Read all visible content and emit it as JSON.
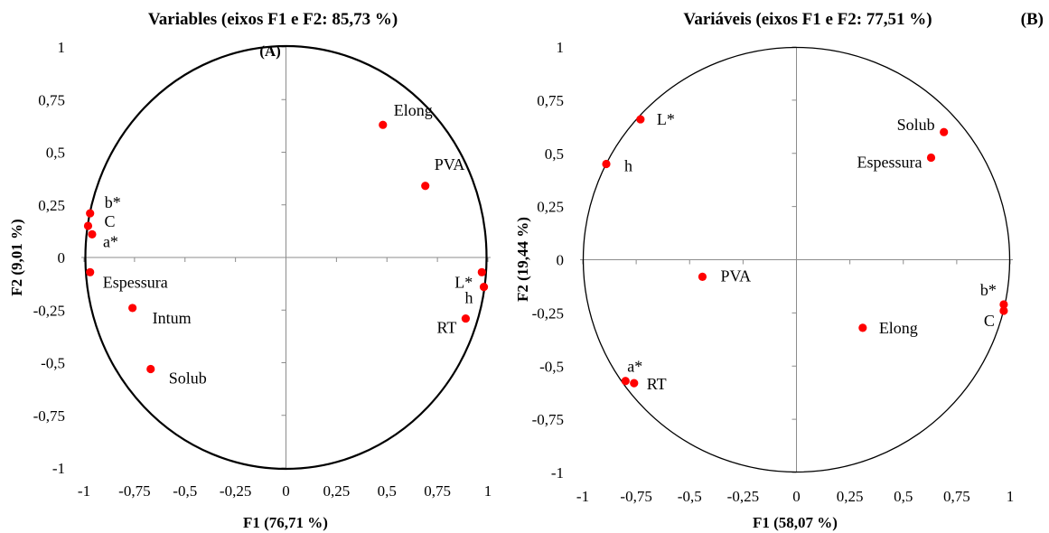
{
  "chart_data": [
    {
      "type": "scatter",
      "title": "Variables (eixos F1 e F2: 85,73 %)",
      "panel_label": "(A)",
      "xlabel": "F1 (76,71 %)",
      "ylabel": "F2 (9,01 %)",
      "xlim": [
        -1,
        1
      ],
      "ylim": [
        -1,
        1
      ],
      "x_ticks": [
        "-1",
        "-0,75",
        "-0,5",
        "-0,25",
        "0",
        "0,25",
        "0,5",
        "0,75",
        "1"
      ],
      "y_ticks": [
        "1",
        "0,75",
        "0,5",
        "0,25",
        "0",
        "-0,25",
        "-0,5",
        "-0,75",
        "-1"
      ],
      "correlation_circle": true,
      "marker_color": "#ff0000",
      "points": [
        {
          "label": "Elong",
          "x": 0.48,
          "y": 0.63
        },
        {
          "label": "PVA",
          "x": 0.69,
          "y": 0.34
        },
        {
          "label": "b*",
          "x": -0.97,
          "y": 0.21
        },
        {
          "label": "C",
          "x": -0.98,
          "y": 0.15
        },
        {
          "label": "a*",
          "x": -0.96,
          "y": 0.11
        },
        {
          "label": "Espessura",
          "x": -0.97,
          "y": -0.07
        },
        {
          "label": "L*",
          "x": 0.97,
          "y": -0.07
        },
        {
          "label": "h",
          "x": 0.98,
          "y": -0.14
        },
        {
          "label": "RT",
          "x": 0.89,
          "y": -0.29
        },
        {
          "label": "Intum",
          "x": -0.76,
          "y": -0.24
        },
        {
          "label": "Solub",
          "x": -0.67,
          "y": -0.53
        }
      ]
    },
    {
      "type": "scatter",
      "title": "Variáveis (eixos F1 e F2: 77,51 %)",
      "panel_label": "(B)",
      "xlabel": "F1 (58,07 %)",
      "ylabel": "F2 (19,44 %)",
      "xlim": [
        -1,
        1
      ],
      "ylim": [
        -1,
        1
      ],
      "x_ticks": [
        "-1",
        "-0,75",
        "-0,5",
        "-0,25",
        "0",
        "0,25",
        "0,5",
        "0,75",
        "1"
      ],
      "y_ticks": [
        "1",
        "0,75",
        "0,5",
        "0,25",
        "0",
        "-0,25",
        "-0,5",
        "-0,75",
        "-1"
      ],
      "correlation_circle": true,
      "marker_color": "#ff0000",
      "points": [
        {
          "label": "L*",
          "x": -0.73,
          "y": 0.66
        },
        {
          "label": "h",
          "x": -0.89,
          "y": 0.45
        },
        {
          "label": "Solub",
          "x": 0.69,
          "y": 0.6
        },
        {
          "label": "Espessura",
          "x": 0.63,
          "y": 0.48
        },
        {
          "label": "PVA",
          "x": -0.44,
          "y": -0.08
        },
        {
          "label": "Elong",
          "x": 0.31,
          "y": -0.32
        },
        {
          "label": "b*",
          "x": 0.97,
          "y": -0.21
        },
        {
          "label": "C",
          "x": 0.97,
          "y": -0.24
        },
        {
          "label": "a*",
          "x": -0.8,
          "y": -0.57
        },
        {
          "label": "RT",
          "x": -0.76,
          "y": -0.58
        }
      ]
    }
  ]
}
